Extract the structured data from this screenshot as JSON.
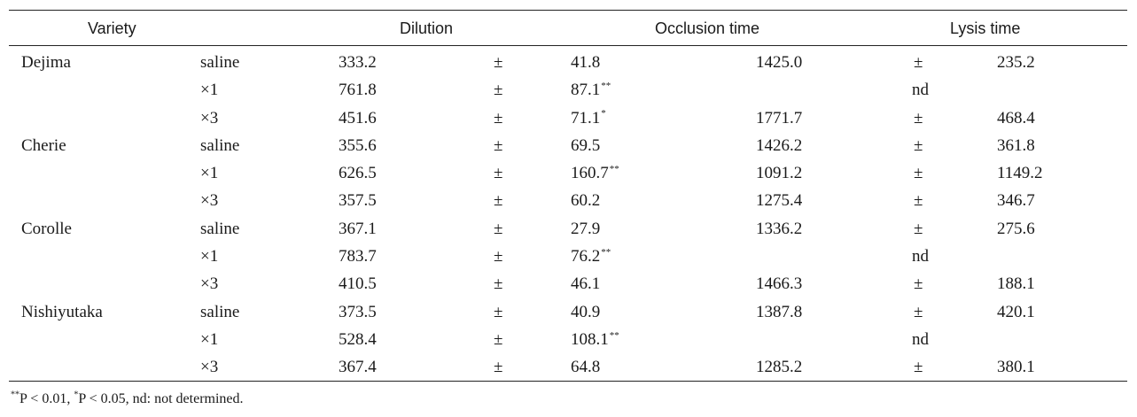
{
  "headers": {
    "variety": "Variety",
    "dilution": "Dilution",
    "occlusion": "Occlusion time",
    "lysis": "Lysis time"
  },
  "rows": [
    {
      "variety": "Dejima",
      "dilution": "saline",
      "occ_mean": "333.2",
      "occ_pm": "±",
      "occ_sd": "41.8",
      "occ_sig": "",
      "lys_mean": "1425.0",
      "lys_pm": "±",
      "lys_sd": "235.2",
      "lys_nd": ""
    },
    {
      "variety": "",
      "dilution": "×1",
      "occ_mean": "761.8",
      "occ_pm": "±",
      "occ_sd": "87.1",
      "occ_sig": "**",
      "lys_mean": "",
      "lys_pm": "",
      "lys_sd": "",
      "lys_nd": "nd"
    },
    {
      "variety": "",
      "dilution": "×3",
      "occ_mean": "451.6",
      "occ_pm": "±",
      "occ_sd": "71.1",
      "occ_sig": "*",
      "lys_mean": "1771.7",
      "lys_pm": "±",
      "lys_sd": "468.4",
      "lys_nd": ""
    },
    {
      "variety": "Cherie",
      "dilution": "saline",
      "occ_mean": "355.6",
      "occ_pm": "±",
      "occ_sd": "69.5",
      "occ_sig": "",
      "lys_mean": "1426.2",
      "lys_pm": "±",
      "lys_sd": "361.8",
      "lys_nd": ""
    },
    {
      "variety": "",
      "dilution": "×1",
      "occ_mean": "626.5",
      "occ_pm": "±",
      "occ_sd": "160.7",
      "occ_sig": "**",
      "lys_mean": "1091.2",
      "lys_pm": "±",
      "lys_sd": "1149.2",
      "lys_nd": ""
    },
    {
      "variety": "",
      "dilution": "×3",
      "occ_mean": "357.5",
      "occ_pm": "±",
      "occ_sd": "60.2",
      "occ_sig": "",
      "lys_mean": "1275.4",
      "lys_pm": "±",
      "lys_sd": "346.7",
      "lys_nd": ""
    },
    {
      "variety": "Corolle",
      "dilution": "saline",
      "occ_mean": "367.1",
      "occ_pm": "±",
      "occ_sd": "27.9",
      "occ_sig": "",
      "lys_mean": "1336.2",
      "lys_pm": "±",
      "lys_sd": "275.6",
      "lys_nd": ""
    },
    {
      "variety": "",
      "dilution": "×1",
      "occ_mean": "783.7",
      "occ_pm": "±",
      "occ_sd": "76.2",
      "occ_sig": "**",
      "lys_mean": "",
      "lys_pm": "",
      "lys_sd": "",
      "lys_nd": "nd"
    },
    {
      "variety": "",
      "dilution": "×3",
      "occ_mean": "410.5",
      "occ_pm": "±",
      "occ_sd": "46.1",
      "occ_sig": "",
      "lys_mean": "1466.3",
      "lys_pm": "±",
      "lys_sd": "188.1",
      "lys_nd": ""
    },
    {
      "variety": "Nishiyutaka",
      "dilution": "saline",
      "occ_mean": "373.5",
      "occ_pm": "±",
      "occ_sd": "40.9",
      "occ_sig": "",
      "lys_mean": "1387.8",
      "lys_pm": "±",
      "lys_sd": "420.1",
      "lys_nd": ""
    },
    {
      "variety": "",
      "dilution": "×1",
      "occ_mean": "528.4",
      "occ_pm": "±",
      "occ_sd": "108.1",
      "occ_sig": "**",
      "lys_mean": "",
      "lys_pm": "",
      "lys_sd": "",
      "lys_nd": "nd"
    },
    {
      "variety": "",
      "dilution": "×3",
      "occ_mean": "367.4",
      "occ_pm": "±",
      "occ_sd": "64.8",
      "occ_sig": "",
      "lys_mean": "1285.2",
      "lys_pm": "±",
      "lys_sd": "380.1",
      "lys_nd": ""
    }
  ],
  "footnote": {
    "mark1": "**",
    "text1": "P < 0.01, ",
    "mark2": "*",
    "text2": "P < 0.05, nd: not determined."
  }
}
